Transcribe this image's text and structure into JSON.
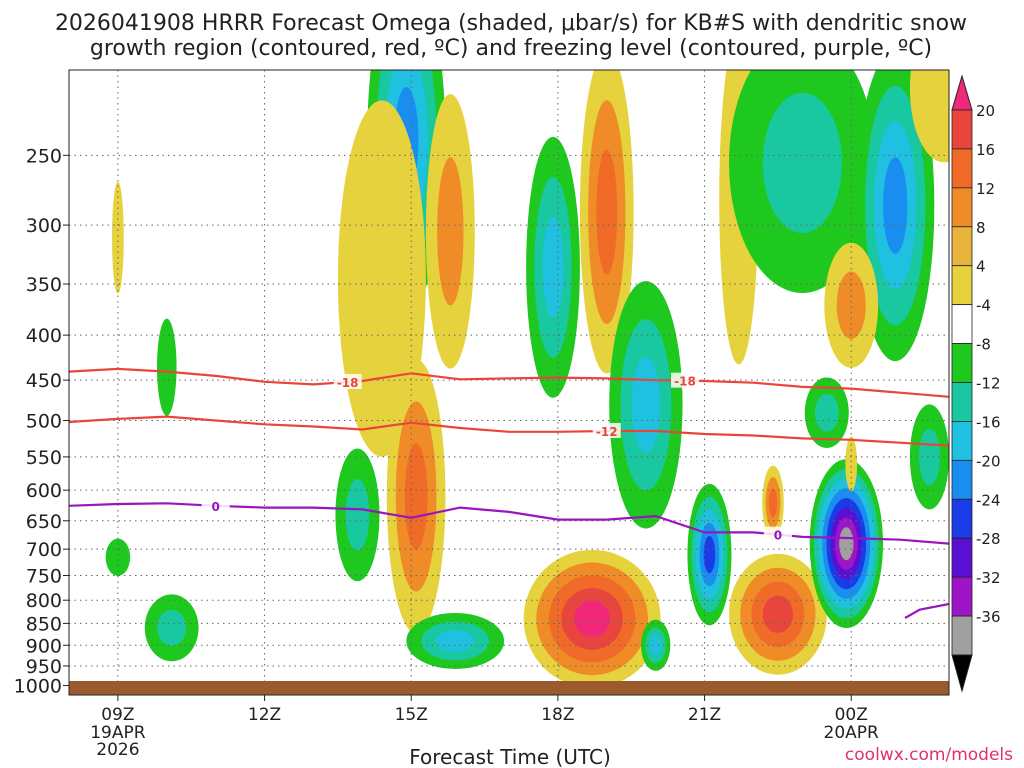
{
  "chart_data": {
    "type": "heatmap",
    "title_line1": "2026041908 HRRR Forecast Omega (shaded, μbar/s) for KB#S with dendritic snow",
    "title_line2": "growth region (contoured, red, ºC) and freezing level (contoured, purple, ºC)",
    "xlabel": "Forecast Time (UTC)",
    "credit": "coolwx.com/models",
    "x_ticks": [
      {
        "hour": 9,
        "label": "09Z",
        "sub1": "19APR",
        "sub2": "2026"
      },
      {
        "hour": 12,
        "label": "12Z",
        "sub1": "",
        "sub2": ""
      },
      {
        "hour": 15,
        "label": "15Z",
        "sub1": "",
        "sub2": ""
      },
      {
        "hour": 18,
        "label": "18Z",
        "sub1": "",
        "sub2": ""
      },
      {
        "hour": 21,
        "label": "21Z",
        "sub1": "",
        "sub2": ""
      },
      {
        "hour": 24,
        "label": "00Z",
        "sub1": "20APR",
        "sub2": ""
      }
    ],
    "x_range_hours": [
      8,
      26
    ],
    "y_ticks": [
      250,
      300,
      350,
      400,
      450,
      500,
      550,
      600,
      650,
      700,
      750,
      800,
      850,
      900,
      950,
      1000
    ],
    "y_range_mb": [
      200,
      1025
    ],
    "colorbar_labels": [
      "20",
      "16",
      "12",
      "8",
      "4",
      "-4",
      "-8",
      "-12",
      "-16",
      "-20",
      "-24",
      "-28",
      "-32",
      "-36"
    ],
    "colorbar_colors": [
      "#f0287a",
      "#e8463c",
      "#f06a28",
      "#f08c28",
      "#e8b43c",
      "#e6d23c",
      "#ffffff",
      "#1ec81e",
      "#19c8a0",
      "#20c0e0",
      "#1a8ef0",
      "#1a3ce6",
      "#5a10d2",
      "#a014c8",
      "#a0a0a0",
      "#000000"
    ],
    "contour_labels": {
      "dendritic_top": "-18",
      "dendritic_bottom": "-12",
      "freezing": "0"
    },
    "dendritic_top_mb": [
      [
        8,
        440
      ],
      [
        9,
        437
      ],
      [
        10,
        440
      ],
      [
        11,
        445
      ],
      [
        12,
        452
      ],
      [
        13,
        455
      ],
      [
        14,
        451
      ],
      [
        15,
        442
      ],
      [
        16,
        449
      ],
      [
        17,
        448
      ],
      [
        18,
        447
      ],
      [
        19,
        448
      ],
      [
        20,
        450
      ],
      [
        21,
        451
      ],
      [
        22,
        453
      ],
      [
        23,
        458
      ],
      [
        24,
        460
      ],
      [
        25,
        465
      ],
      [
        26,
        470
      ]
    ],
    "dendritic_bottom_mb": [
      [
        8,
        502
      ],
      [
        9,
        498
      ],
      [
        10,
        495
      ],
      [
        11,
        500
      ],
      [
        12,
        505
      ],
      [
        13,
        508
      ],
      [
        14,
        512
      ],
      [
        15,
        503
      ],
      [
        16,
        510
      ],
      [
        17,
        515
      ],
      [
        18,
        515
      ],
      [
        19,
        514
      ],
      [
        20,
        514
      ],
      [
        21,
        518
      ],
      [
        22,
        520
      ],
      [
        23,
        524
      ],
      [
        24,
        526
      ],
      [
        25,
        530
      ],
      [
        26,
        534
      ]
    ],
    "freezing_mb": [
      [
        8,
        625
      ],
      [
        9,
        622
      ],
      [
        10,
        621
      ],
      [
        11,
        625
      ],
      [
        12,
        628
      ],
      [
        13,
        628
      ],
      [
        14,
        631
      ],
      [
        15,
        645
      ],
      [
        16,
        628
      ],
      [
        17,
        635
      ],
      [
        18,
        648
      ],
      [
        19,
        648
      ],
      [
        20,
        642
      ],
      [
        21,
        670
      ],
      [
        22,
        670
      ],
      [
        23,
        678
      ],
      [
        24,
        680
      ],
      [
        25,
        683
      ],
      [
        26,
        690
      ]
    ],
    "freezing_lower_mb": [
      [
        25.1,
        838
      ],
      [
        25.4,
        820
      ],
      [
        26,
        808
      ]
    ],
    "omega_cells": [
      {
        "t": 9.0,
        "p": 310,
        "rt": 0.12,
        "rp": 45,
        "v": 5
      },
      {
        "t": 10.0,
        "p": 435,
        "rt": 0.2,
        "rp": 55,
        "v": -6
      },
      {
        "t": 10.1,
        "p": 860,
        "rt": 0.55,
        "rp": 75,
        "v": -10
      },
      {
        "t": 9.0,
        "p": 715,
        "rt": 0.25,
        "rp": 35,
        "v": -5
      },
      {
        "t": 13.9,
        "p": 640,
        "rt": 0.45,
        "rp": 110,
        "v": -10
      },
      {
        "t": 14.9,
        "p": 240,
        "rt": 0.8,
        "rp": 210,
        "v": -18
      },
      {
        "t": 14.4,
        "p": 345,
        "rt": 0.9,
        "rp": 150,
        "v": 6
      },
      {
        "t": 15.1,
        "p": 610,
        "rt": 0.6,
        "rp": 210,
        "v": 14
      },
      {
        "t": 15.8,
        "p": 305,
        "rt": 0.5,
        "rp": 105,
        "v": 8
      },
      {
        "t": 15.9,
        "p": 890,
        "rt": 1.0,
        "rp": 65,
        "v": -12
      },
      {
        "t": 17.9,
        "p": 335,
        "rt": 0.55,
        "rp": 110,
        "v": -14
      },
      {
        "t": 19.0,
        "p": 290,
        "rt": 0.55,
        "rp": 140,
        "v": 12
      },
      {
        "t": 18.7,
        "p": 840,
        "rt": 1.4,
        "rp": 150,
        "v": 22
      },
      {
        "t": 19.8,
        "p": 480,
        "rt": 0.75,
        "rp": 150,
        "v": -14
      },
      {
        "t": 21.1,
        "p": 710,
        "rt": 0.45,
        "rp": 130,
        "v": -22
      },
      {
        "t": 20.0,
        "p": 900,
        "rt": 0.3,
        "rp": 60,
        "v": -12
      },
      {
        "t": 21.7,
        "p": 280,
        "rt": 0.4,
        "rp": 160,
        "v": 6
      },
      {
        "t": 22.5,
        "p": 830,
        "rt": 1.0,
        "rp": 130,
        "v": 16
      },
      {
        "t": 22.4,
        "p": 620,
        "rt": 0.22,
        "rp": 60,
        "v": 12
      },
      {
        "t": 23.0,
        "p": 255,
        "rt": 1.5,
        "rp": 110,
        "v": -10
      },
      {
        "t": 24.9,
        "p": 285,
        "rt": 0.8,
        "rp": 110,
        "v": -18
      },
      {
        "t": 24.0,
        "p": 370,
        "rt": 0.55,
        "rp": 60,
        "v": 10
      },
      {
        "t": 23.9,
        "p": 690,
        "rt": 0.75,
        "rp": 150,
        "v": -34
      },
      {
        "t": 23.5,
        "p": 490,
        "rt": 0.45,
        "rp": 45,
        "v": -10
      },
      {
        "t": 25.6,
        "p": 550,
        "rt": 0.4,
        "rp": 75,
        "v": -8
      },
      {
        "t": 24.0,
        "p": 560,
        "rt": 0.12,
        "rp": 40,
        "v": 5
      },
      {
        "t": 25.9,
        "p": 210,
        "rt": 0.7,
        "rp": 40,
        "v": 5
      }
    ]
  }
}
